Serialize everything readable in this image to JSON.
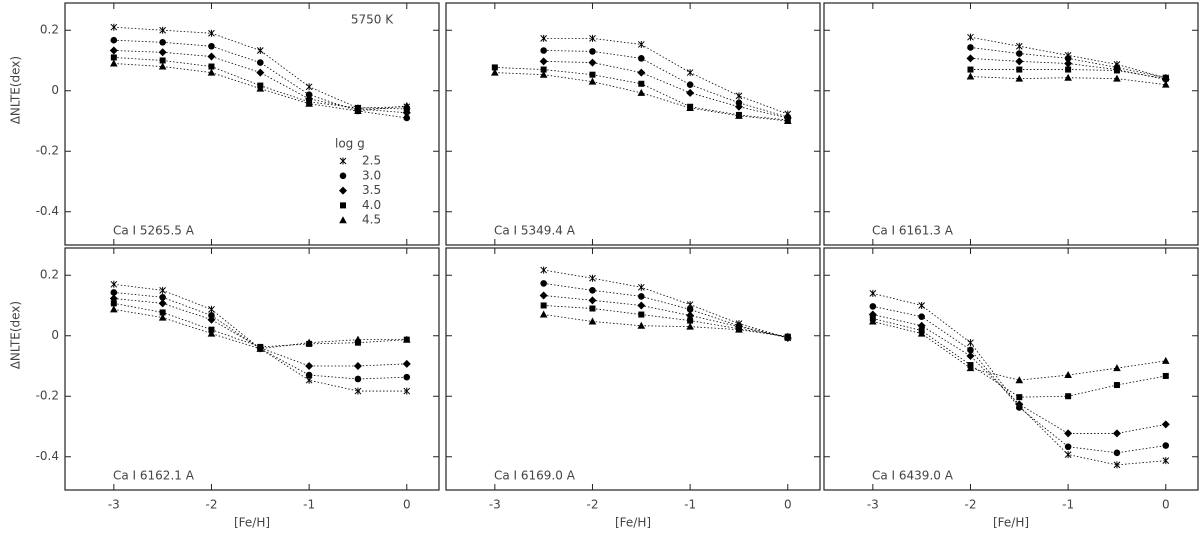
{
  "chart_data": [
    {
      "type": "line",
      "annotation": "5750 K",
      "label": "Ca I 5265.5 A",
      "ylabel": "ΔNLTE(dex)",
      "legend": true,
      "legend_title": "log g",
      "x": [
        -3,
        -2.5,
        -2,
        -1.5,
        -1,
        -0.5,
        0
      ],
      "xlim": [
        -3.5,
        0.33
      ],
      "ylim": [
        -0.51,
        0.29
      ],
      "xticks": [
        -3,
        -2,
        -1,
        0
      ],
      "yticks": [
        -0.4,
        -0.2,
        0.0,
        0.2
      ],
      "x_tick_labels": false,
      "y_tick_labels": true,
      "series": [
        {
          "name": "2.5",
          "marker": "x",
          "color": "#000000",
          "values": [
            0.21,
            0.2,
            0.19,
            0.133,
            0.013,
            -0.057,
            -0.053
          ]
        },
        {
          "name": "3.0",
          "marker": "circle",
          "color": "#000000",
          "values": [
            0.167,
            0.16,
            0.147,
            0.093,
            -0.013,
            -0.067,
            -0.09
          ]
        },
        {
          "name": "3.5",
          "marker": "diamond",
          "color": "#000000",
          "values": [
            0.133,
            0.127,
            0.113,
            0.06,
            -0.027,
            -0.06,
            -0.073
          ]
        },
        {
          "name": "4.0",
          "marker": "square",
          "color": "#000000",
          "values": [
            0.11,
            0.1,
            0.08,
            0.017,
            -0.037,
            -0.057,
            -0.06
          ]
        },
        {
          "name": "4.5",
          "marker": "triangle",
          "color": "#000000",
          "values": [
            0.09,
            0.08,
            0.06,
            0.007,
            -0.043,
            -0.067,
            -0.05
          ]
        }
      ]
    },
    {
      "type": "line",
      "label": "Ca I 5349.4 A",
      "x": [
        -3,
        -2.5,
        -2,
        -1.5,
        -1,
        -0.5,
        0
      ],
      "xlim": [
        -3.5,
        0.33
      ],
      "ylim": [
        -0.51,
        0.29
      ],
      "xticks": [
        -3,
        -2,
        -1,
        0
      ],
      "yticks": [
        -0.4,
        -0.2,
        0.0,
        0.2
      ],
      "x_tick_labels": false,
      "y_tick_labels": false,
      "series": [
        {
          "marker": "x",
          "color": "#000000",
          "values": [
            null,
            0.173,
            0.173,
            0.153,
            0.06,
            -0.017,
            -0.077
          ]
        },
        {
          "marker": "circle",
          "color": "#000000",
          "values": [
            null,
            0.133,
            0.13,
            0.107,
            0.02,
            -0.04,
            -0.087
          ]
        },
        {
          "marker": "diamond",
          "color": "#000000",
          "values": [
            null,
            0.097,
            0.093,
            0.06,
            -0.007,
            -0.053,
            -0.09
          ]
        },
        {
          "marker": "square",
          "color": "#000000",
          "values": [
            0.077,
            0.07,
            0.053,
            0.023,
            -0.053,
            -0.08,
            -0.097
          ]
        },
        {
          "marker": "triangle",
          "color": "#000000",
          "values": [
            0.06,
            0.053,
            0.03,
            -0.007,
            -0.057,
            -0.083,
            -0.1
          ]
        }
      ]
    },
    {
      "type": "line",
      "label": "Ca I 6161.3 A",
      "x": [
        -2,
        -1.5,
        -1,
        -0.5,
        0
      ],
      "xlim": [
        -3.5,
        0.33
      ],
      "ylim": [
        -0.51,
        0.29
      ],
      "xticks": [
        -3,
        -2,
        -1,
        0
      ],
      "yticks": [
        -0.4,
        -0.2,
        0.0,
        0.2
      ],
      "x_tick_labels": false,
      "y_tick_labels": false,
      "series": [
        {
          "marker": "x",
          "color": "#000000",
          "values": [
            0.177,
            0.147,
            0.117,
            0.087,
            0.043
          ]
        },
        {
          "marker": "circle",
          "color": "#000000",
          "values": [
            0.143,
            0.123,
            0.107,
            0.077,
            0.043
          ]
        },
        {
          "marker": "diamond",
          "color": "#000000",
          "values": [
            0.107,
            0.097,
            0.09,
            0.07,
            0.037
          ]
        },
        {
          "marker": "square",
          "color": "#000000",
          "values": [
            0.07,
            0.07,
            0.07,
            0.067,
            0.04
          ]
        },
        {
          "marker": "triangle",
          "color": "#000000",
          "values": [
            0.047,
            0.04,
            0.043,
            0.04,
            0.02
          ]
        }
      ]
    },
    {
      "type": "line",
      "label": "Ca I 6162.1 A",
      "ylabel": "ΔNLTE(dex)",
      "xlabel": "[Fe/H]",
      "x": [
        -3,
        -2.5,
        -2,
        -1.5,
        -1,
        -0.5,
        0
      ],
      "xlim": [
        -3.5,
        0.33
      ],
      "ylim": [
        -0.51,
        0.29
      ],
      "xticks": [
        -3,
        -2,
        -1,
        0
      ],
      "yticks": [
        -0.4,
        -0.2,
        0.0,
        0.2
      ],
      "x_tick_labels": true,
      "y_tick_labels": true,
      "series": [
        {
          "marker": "x",
          "color": "#000000",
          "values": [
            0.17,
            0.15,
            0.087,
            -0.043,
            -0.147,
            -0.183,
            -0.183
          ]
        },
        {
          "marker": "circle",
          "color": "#000000",
          "values": [
            0.143,
            0.127,
            0.067,
            -0.043,
            -0.13,
            -0.143,
            -0.137
          ]
        },
        {
          "marker": "diamond",
          "color": "#000000",
          "values": [
            0.123,
            0.107,
            0.053,
            -0.04,
            -0.1,
            -0.1,
            -0.093
          ]
        },
        {
          "marker": "square",
          "color": "#000000",
          "values": [
            0.107,
            0.077,
            0.02,
            -0.037,
            -0.027,
            -0.023,
            -0.013
          ]
        },
        {
          "marker": "triangle",
          "color": "#000000",
          "values": [
            0.087,
            0.06,
            0.007,
            -0.043,
            -0.023,
            -0.013,
            -0.013
          ]
        }
      ]
    },
    {
      "type": "line",
      "label": "Ca I 6169.0 A",
      "xlabel": "[Fe/H]",
      "x": [
        -2.5,
        -2,
        -1.5,
        -1,
        -0.5,
        0
      ],
      "xlim": [
        -3.5,
        0.33
      ],
      "ylim": [
        -0.51,
        0.29
      ],
      "xticks": [
        -3,
        -2,
        -1,
        0
      ],
      "yticks": [
        -0.4,
        -0.2,
        0.0,
        0.2
      ],
      "x_tick_labels": true,
      "y_tick_labels": false,
      "series": [
        {
          "marker": "x",
          "color": "#000000",
          "values": [
            0.217,
            0.19,
            0.16,
            0.103,
            0.04,
            -0.007
          ]
        },
        {
          "marker": "circle",
          "color": "#000000",
          "values": [
            0.173,
            0.15,
            0.13,
            0.087,
            0.033,
            -0.007
          ]
        },
        {
          "marker": "diamond",
          "color": "#000000",
          "values": [
            0.133,
            0.117,
            0.1,
            0.067,
            0.03,
            -0.007
          ]
        },
        {
          "marker": "square",
          "color": "#000000",
          "values": [
            0.1,
            0.09,
            0.07,
            0.05,
            0.023,
            -0.003
          ]
        },
        {
          "marker": "triangle",
          "color": "#000000",
          "values": [
            0.07,
            0.047,
            0.033,
            0.03,
            0.02,
            -0.003
          ]
        }
      ]
    },
    {
      "type": "line",
      "label": "Ca I 6439.0 A",
      "xlabel": "[Fe/H]",
      "x": [
        -3,
        -2.5,
        -2,
        -1.5,
        -1,
        -0.5,
        0
      ],
      "xlim": [
        -3.5,
        0.33
      ],
      "ylim": [
        -0.51,
        0.29
      ],
      "xticks": [
        -3,
        -2,
        -1,
        0
      ],
      "yticks": [
        -0.4,
        -0.2,
        0.0,
        0.2
      ],
      "x_tick_labels": true,
      "y_tick_labels": false,
      "series": [
        {
          "marker": "x",
          "color": "#000000",
          "values": [
            0.14,
            0.1,
            -0.023,
            -0.233,
            -0.393,
            -0.427,
            -0.413
          ]
        },
        {
          "marker": "circle",
          "color": "#000000",
          "values": [
            0.097,
            0.063,
            -0.047,
            -0.237,
            -0.367,
            -0.387,
            -0.363
          ]
        },
        {
          "marker": "diamond",
          "color": "#000000",
          "values": [
            0.07,
            0.033,
            -0.067,
            -0.227,
            -0.323,
            -0.323,
            -0.293
          ]
        },
        {
          "marker": "square",
          "color": "#000000",
          "values": [
            0.057,
            0.017,
            -0.097,
            -0.203,
            -0.2,
            -0.163,
            -0.133
          ]
        },
        {
          "marker": "triangle",
          "color": "#000000",
          "values": [
            0.047,
            0.007,
            -0.107,
            -0.147,
            -0.13,
            -0.107,
            -0.083
          ]
        }
      ]
    }
  ]
}
